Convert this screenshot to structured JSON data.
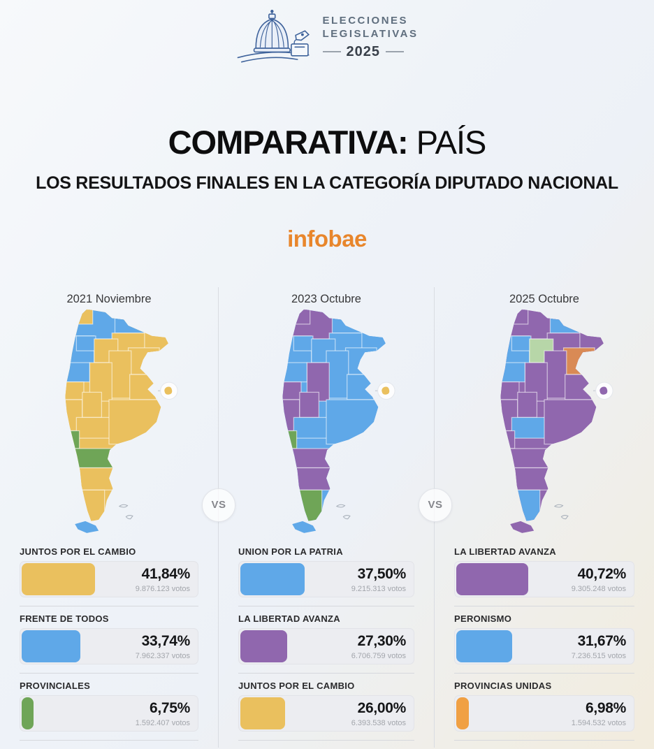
{
  "header": {
    "logo": {
      "icon": "congress-dome-ballot-icon",
      "line1": "ELECCIONES",
      "line2": "LEGISLATIVAS",
      "year": "2025"
    },
    "title": {
      "bold": "COMPARATIVA:",
      "regular": "PAÍS"
    },
    "subtitle": "LOS RESULTADOS FINALES EN LA CATEGORÍA DIPUTADO NACIONAL",
    "brand": "infobae"
  },
  "vs_label": "VS",
  "party_colors": {
    "yellow": "#EAC05E",
    "blue": "#5FA8E8",
    "green": "#6FA557",
    "purple": "#9067AE",
    "light_green": "#B7D6A8",
    "orange": "#D98A55",
    "orange_bright": "#F0A043"
  },
  "columns": [
    {
      "header": "2021 Noviembre",
      "caba": "yellow",
      "provinces": {
        "salta": "blue",
        "jujuy": "yellow",
        "formosa": "blue",
        "chaco": "yellow",
        "misiones": "yellow",
        "corrientes": "yellow",
        "catamarca": "blue",
        "tucuman": "blue",
        "santiago": "yellow",
        "santa_fe": "yellow",
        "la_rioja": "blue",
        "cordoba": "yellow",
        "entre_rios": "yellow",
        "san_juan": "yellow",
        "mendoza": "yellow",
        "san_luis": "yellow",
        "la_pampa": "yellow",
        "buenos_aires": "yellow",
        "neuquen": "green",
        "rio_negro": "green",
        "chubut": "yellow",
        "santa_cruz": "yellow",
        "tierra_del_fuego": "blue"
      },
      "stats": [
        {
          "party": "JUNTOS POR EL CAMBIO",
          "percent": "41,84%",
          "value": 41.84,
          "votes": "9.876.123 votos",
          "color": "yellow"
        },
        {
          "party": "FRENTE DE TODOS",
          "percent": "33,74%",
          "value": 33.74,
          "votes": "7.962.337 votos",
          "color": "blue"
        },
        {
          "party": "PROVINCIALES",
          "percent": "6,75%",
          "value": 6.75,
          "votes": "1.592.407 votos",
          "color": "green"
        }
      ]
    },
    {
      "header": "2023 Octubre",
      "caba": "yellow",
      "provinces": {
        "salta": "purple",
        "jujuy": "purple",
        "formosa": "blue",
        "chaco": "blue",
        "misiones": "blue",
        "corrientes": "blue",
        "catamarca": "blue",
        "tucuman": "blue",
        "santiago": "blue",
        "santa_fe": "blue",
        "la_rioja": "blue",
        "cordoba": "purple",
        "entre_rios": "blue",
        "san_juan": "purple",
        "mendoza": "purple",
        "san_luis": "purple",
        "la_pampa": "blue",
        "buenos_aires": "blue",
        "neuquen": "green",
        "rio_negro": "purple",
        "chubut": "purple",
        "santa_cruz": "green",
        "tierra_del_fuego": "blue"
      },
      "stats": [
        {
          "party": "UNION POR LA PATRIA",
          "percent": "37,50%",
          "value": 37.5,
          "votes": "9.215.313 votos",
          "color": "blue"
        },
        {
          "party": "LA LIBERTAD AVANZA",
          "percent": "27,30%",
          "value": 27.3,
          "votes": "6.706.759 votos",
          "color": "purple"
        },
        {
          "party": "JUNTOS POR EL CAMBIO",
          "percent": "26,00%",
          "value": 26.0,
          "votes": "6.393.538 votos",
          "color": "yellow"
        }
      ]
    },
    {
      "header": "2025 Octubre",
      "caba": "purple",
      "provinces": {
        "salta": "purple",
        "jujuy": "purple",
        "formosa": "blue",
        "chaco": "purple",
        "misiones": "purple",
        "corrientes": "orange",
        "catamarca": "blue",
        "tucuman": "blue",
        "santiago": "light_green",
        "santa_fe": "purple",
        "la_rioja": "blue",
        "cordoba": "purple",
        "entre_rios": "purple",
        "san_juan": "purple",
        "mendoza": "purple",
        "san_luis": "purple",
        "la_pampa": "blue",
        "buenos_aires": "purple",
        "neuquen": "purple",
        "rio_negro": "purple",
        "chubut": "purple",
        "santa_cruz": "blue",
        "tierra_del_fuego": "purple"
      },
      "stats": [
        {
          "party": "LA LIBERTAD AVANZA",
          "percent": "40,72%",
          "value": 40.72,
          "votes": "9.305.248 votos",
          "color": "purple"
        },
        {
          "party": "PERONISMO",
          "percent": "31,67%",
          "value": 31.67,
          "votes": "7.236.515 votos",
          "color": "blue"
        },
        {
          "party": "PROVINCIAS UNIDAS",
          "percent": "6,98%",
          "value": 6.98,
          "votes": "1.594.532 votos",
          "color": "orange_bright"
        }
      ]
    }
  ],
  "chart_data": [
    {
      "type": "bar",
      "title": "2021 Noviembre",
      "categories": [
        "JUNTOS POR EL CAMBIO",
        "FRENTE DE TODOS",
        "PROVINCIALES"
      ],
      "values": [
        41.84,
        33.74,
        6.75
      ],
      "value_labels": [
        "41,84%",
        "33,74%",
        "6,75%"
      ],
      "votes": [
        "9.876.123",
        "7.962.337",
        "1.592.407"
      ],
      "xlabel": "",
      "ylabel": "",
      "xlim": [
        0,
        100
      ]
    },
    {
      "type": "bar",
      "title": "2023 Octubre",
      "categories": [
        "UNION POR LA PATRIA",
        "LA LIBERTAD AVANZA",
        "JUNTOS POR EL CAMBIO"
      ],
      "values": [
        37.5,
        27.3,
        26.0
      ],
      "value_labels": [
        "37,50%",
        "27,30%",
        "26,00%"
      ],
      "votes": [
        "9.215.313",
        "6.706.759",
        "6.393.538"
      ],
      "xlabel": "",
      "ylabel": "",
      "xlim": [
        0,
        100
      ]
    },
    {
      "type": "bar",
      "title": "2025 Octubre",
      "categories": [
        "LA LIBERTAD AVANZA",
        "PERONISMO",
        "PROVINCIAS UNIDAS"
      ],
      "values": [
        40.72,
        31.67,
        6.98
      ],
      "value_labels": [
        "40,72%",
        "31,67%",
        "6,98%"
      ],
      "votes": [
        "9.305.248",
        "7.236.515",
        "1.594.532"
      ],
      "xlabel": "",
      "ylabel": "",
      "xlim": [
        0,
        100
      ]
    }
  ]
}
